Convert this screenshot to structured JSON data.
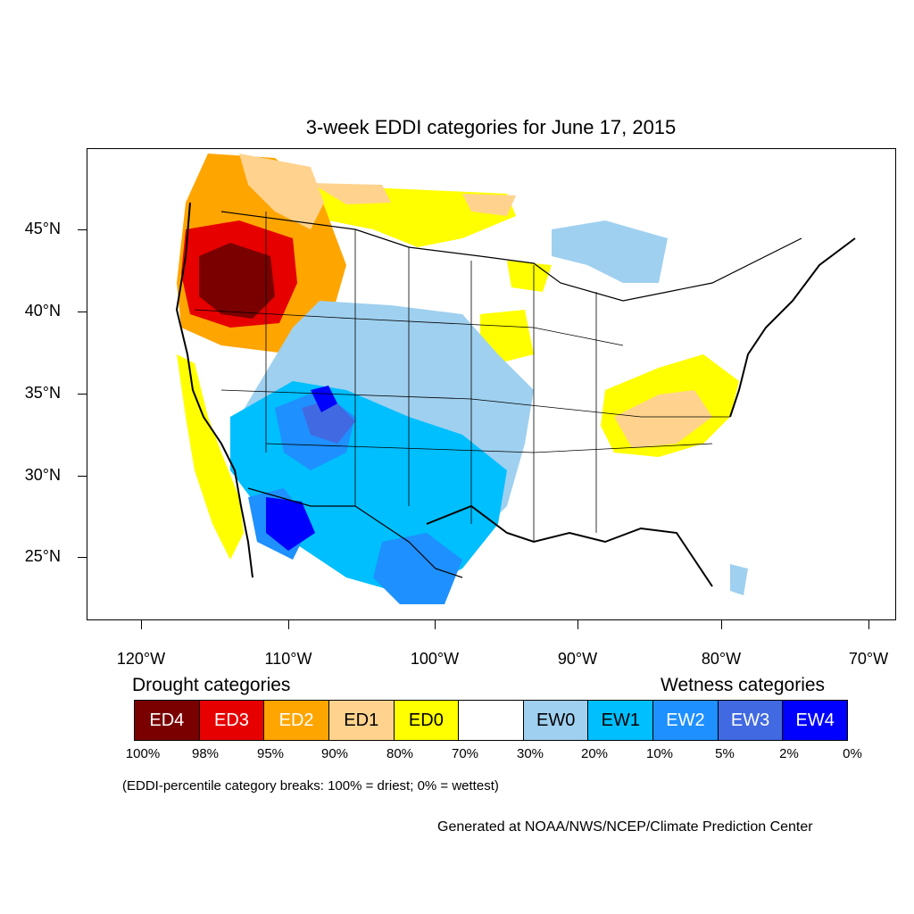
{
  "title": "3-week EDDI categories for June 17, 2015",
  "map": {
    "lat_labels": [
      "45°N",
      "40°N",
      "35°N",
      "30°N",
      "25°N"
    ],
    "lon_labels": [
      "120°W",
      "110°W",
      "100°W",
      "90°W",
      "80°W",
      "70°W"
    ]
  },
  "legend": {
    "drought_heading": "Drought categories",
    "wetness_heading": "Wetness categories",
    "categories": [
      {
        "label": "ED4",
        "color": "#7a0000",
        "text_color": "#ffffff"
      },
      {
        "label": "ED3",
        "color": "#e60000",
        "text_color": "#ffffff"
      },
      {
        "label": "ED2",
        "color": "#ffa500",
        "text_color": "#ffffff"
      },
      {
        "label": "ED1",
        "color": "#ffd38e",
        "text_color": "#000000"
      },
      {
        "label": "ED0",
        "color": "#ffff00",
        "text_color": "#000000"
      },
      {
        "label": "",
        "color": "#ffffff",
        "text_color": "#000000"
      },
      {
        "label": "EW0",
        "color": "#9fd0ef",
        "text_color": "#000000"
      },
      {
        "label": "EW1",
        "color": "#00bfff",
        "text_color": "#000000"
      },
      {
        "label": "EW2",
        "color": "#1e90ff",
        "text_color": "#ffffff"
      },
      {
        "label": "EW3",
        "color": "#4169e1",
        "text_color": "#ffffff"
      },
      {
        "label": "EW4",
        "color": "#0000ff",
        "text_color": "#ffffff"
      }
    ],
    "breaks": [
      "100%",
      "98%",
      "95%",
      "90%",
      "80%",
      "70%",
      "30%",
      "20%",
      "10%",
      "5%",
      "2%",
      "0%"
    ]
  },
  "note": "(EDDI-percentile category breaks: 100% = driest; 0% = wettest)",
  "credit": "Generated at NOAA/NWS/NCEP/Climate Prediction Center"
}
